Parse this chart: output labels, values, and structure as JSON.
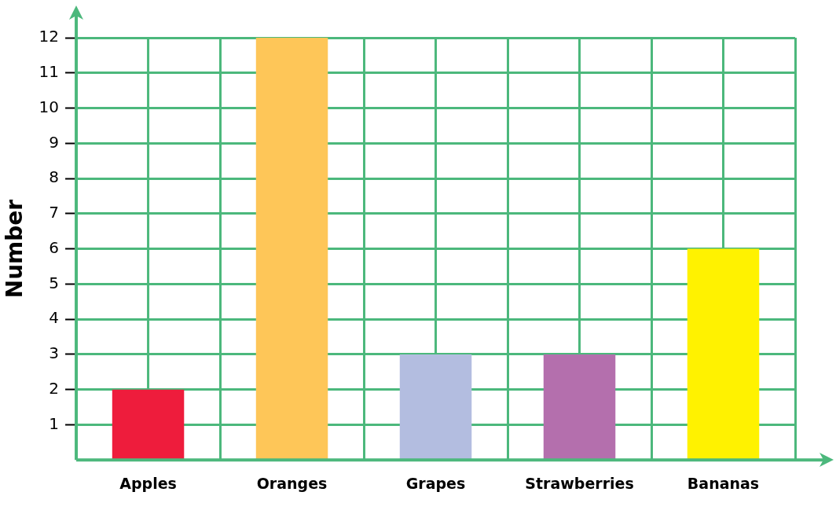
{
  "chart_data": {
    "type": "bar",
    "ylabel": "Number",
    "categories": [
      "Apples",
      "Oranges",
      "Grapes",
      "Strawberries",
      "Bananas"
    ],
    "values": [
      2,
      12,
      3,
      3,
      6
    ],
    "colors": [
      "#ee1c3c",
      "#fec658",
      "#b3bde0",
      "#b46fad",
      "#fff200"
    ],
    "ylim": [
      0,
      12
    ],
    "yticks": [
      1,
      2,
      3,
      4,
      5,
      6,
      7,
      8,
      9,
      10,
      11,
      12
    ],
    "grid": true,
    "legend": false
  }
}
